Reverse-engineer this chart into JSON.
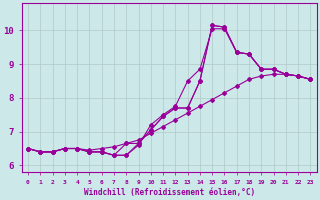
{
  "xlabel": "Windchill (Refroidissement éolien,°C)",
  "background_color": "#cce8e8",
  "line_color": "#990099",
  "grid_color": "#b0c8c8",
  "xlim": [
    -0.5,
    23.5
  ],
  "ylim": [
    5.8,
    10.8
  ],
  "xticks": [
    0,
    1,
    2,
    3,
    4,
    5,
    6,
    7,
    8,
    9,
    10,
    11,
    12,
    13,
    14,
    15,
    16,
    17,
    18,
    19,
    20,
    21,
    22,
    23
  ],
  "yticks": [
    6,
    7,
    8,
    9,
    10
  ],
  "line1_y": [
    6.5,
    6.4,
    6.4,
    6.5,
    6.5,
    6.4,
    6.4,
    6.3,
    6.3,
    6.6,
    7.2,
    7.5,
    7.75,
    8.5,
    8.85,
    10.05,
    10.05,
    9.35,
    9.3,
    8.85,
    8.85,
    8.7,
    8.65,
    8.55
  ],
  "line2_y": [
    6.5,
    6.4,
    6.4,
    6.5,
    6.5,
    6.4,
    6.4,
    6.3,
    6.3,
    6.65,
    7.05,
    7.45,
    7.7,
    7.7,
    8.5,
    10.15,
    10.1,
    9.35,
    9.3,
    8.85,
    8.85,
    8.7,
    8.65,
    8.55
  ],
  "line3_y": [
    6.5,
    6.4,
    6.4,
    6.5,
    6.5,
    6.4,
    6.4,
    6.3,
    6.65,
    6.65,
    7.05,
    7.45,
    7.7,
    7.7,
    8.5,
    10.15,
    10.1,
    9.35,
    9.3,
    8.85,
    8.85,
    8.7,
    8.65,
    8.55
  ],
  "line4_y": [
    6.5,
    6.4,
    6.4,
    6.5,
    6.5,
    6.45,
    6.5,
    6.55,
    6.65,
    6.75,
    6.95,
    7.15,
    7.35,
    7.55,
    7.75,
    7.95,
    8.15,
    8.35,
    8.55,
    8.65,
    8.7,
    8.7,
    8.65,
    8.55
  ]
}
